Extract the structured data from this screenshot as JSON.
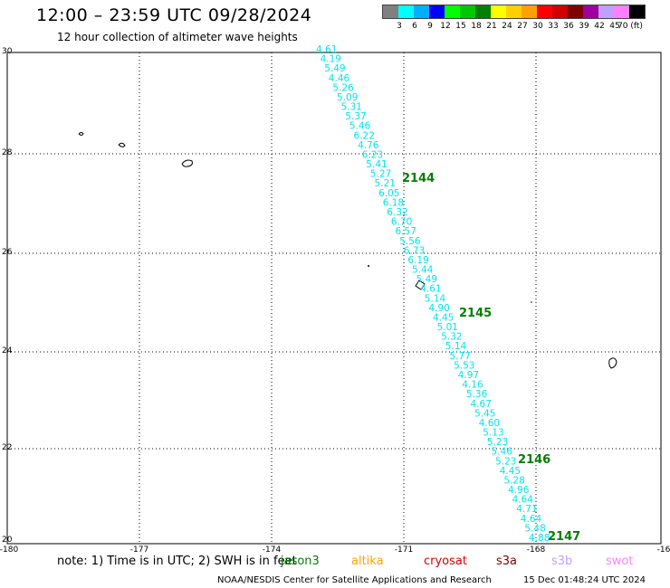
{
  "title": "12:00 – 23:59 UTC 09/28/2024",
  "subtitle": "12 hour collection of altimeter wave heights",
  "legend": {
    "colors": [
      "#808080",
      "#00ffff",
      "#00b0ff",
      "#0000ff",
      "#00ff00",
      "#00c800",
      "#008000",
      "#ffff00",
      "#ffd000",
      "#ffa000",
      "#ff0000",
      "#d00000",
      "#800000",
      "#a000a0",
      "#c0a0ff",
      "#ff80ff",
      "#000000"
    ],
    "labels": [
      "3",
      "6",
      "9",
      "12",
      "15",
      "18",
      "21",
      "24",
      "27",
      "30",
      "33",
      "36",
      "39",
      "42",
      "45",
      "70 (ft)"
    ]
  },
  "axes": {
    "lat_labels": [
      "30",
      "28",
      "26",
      "24",
      "22",
      "20"
    ],
    "lon_labels": [
      "-180",
      "-177",
      "-174",
      "-171",
      "-168",
      "-16"
    ]
  },
  "track": {
    "color": "#00e5ee",
    "values": [
      "4.61",
      "4.19",
      "5.49",
      "4.46",
      "5.26",
      "5.09",
      "5.31",
      "5.37",
      "5.46",
      "6.22",
      "4.76",
      "6.23",
      "5.41",
      "5.27",
      "5.21",
      "6.05",
      "6.18",
      "6.32",
      "6.70",
      "6.57",
      "5.56",
      "6.73",
      "6.19",
      "5.44",
      "5.49",
      "4.61",
      "5.14",
      "4.90",
      "4.45",
      "5.01",
      "5.32",
      "5.14",
      "5.77",
      "5.53",
      "4.97",
      "4.16",
      "5.36",
      "4.67",
      "5.45",
      "4.60",
      "5.13",
      "5.23",
      "5.46",
      "5.23",
      "4.45",
      "5.28",
      "4.96",
      "4.64",
      "4.71",
      "4.64",
      "5.48",
      "4.88"
    ]
  },
  "time_labels": [
    "2144",
    "2145",
    "2146",
    "2147"
  ],
  "time_label_color": "#008000",
  "note": "note:  1) Time is in UTC; 2) SWH is in feet",
  "missions": [
    {
      "name": "jason3",
      "color": "#008000"
    },
    {
      "name": "altika",
      "color": "#ffa000"
    },
    {
      "name": "cryosat",
      "color": "#e00000"
    },
    {
      "name": "s3a",
      "color": "#800000"
    },
    {
      "name": "s3b",
      "color": "#c0a0ff"
    },
    {
      "name": "swot",
      "color": "#ff80ff"
    }
  ],
  "footer": {
    "credit": "NOAA/NESDIS Center for Satellite Applications and Research",
    "timestamp": "15 Dec 01:48:24 UTC 2024"
  }
}
